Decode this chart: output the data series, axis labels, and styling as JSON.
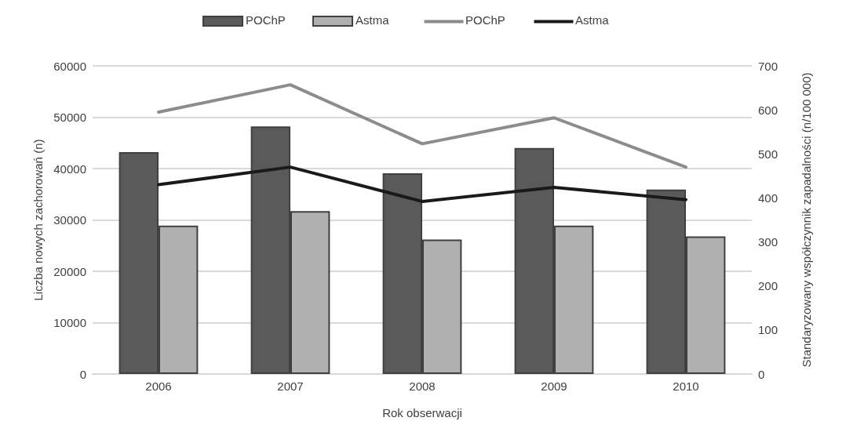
{
  "chart_data": {
    "type": "bar",
    "categories": [
      "2006",
      "2007",
      "2008",
      "2009",
      "2010"
    ],
    "series": [
      {
        "name": "POChP",
        "color": "#5a5a5a",
        "values": [
          43200,
          48200,
          39100,
          44000,
          35900
        ]
      },
      {
        "name": "Astma",
        "color": "#b0b0b0",
        "values": [
          28900,
          31700,
          26200,
          28900,
          26800
        ]
      },
      {
        "name": "POChP",
        "type": "line",
        "axis": "y2",
        "color": "#8c8c8c",
        "values": [
          595,
          657,
          523,
          582,
          470
        ]
      },
      {
        "name": "Astma",
        "type": "line",
        "axis": "y2",
        "color": "#1a1a1a",
        "values": [
          430,
          470,
          392,
          424,
          396
        ]
      }
    ],
    "xlabel": "Rok obserwacji",
    "ylabel": "Liczba nowych zachorowań (n)",
    "y2label": "Standaryzowany współczynnik zapadalności (n/100 000)",
    "ylim": [
      0,
      60000
    ],
    "yticks": [
      0,
      10000,
      20000,
      30000,
      40000,
      50000,
      60000
    ],
    "y2lim": [
      0,
      700
    ],
    "y2ticks": [
      0,
      100,
      200,
      300,
      400,
      500,
      600,
      700
    ],
    "grid": "y",
    "legend": "top",
    "marker": "none"
  }
}
